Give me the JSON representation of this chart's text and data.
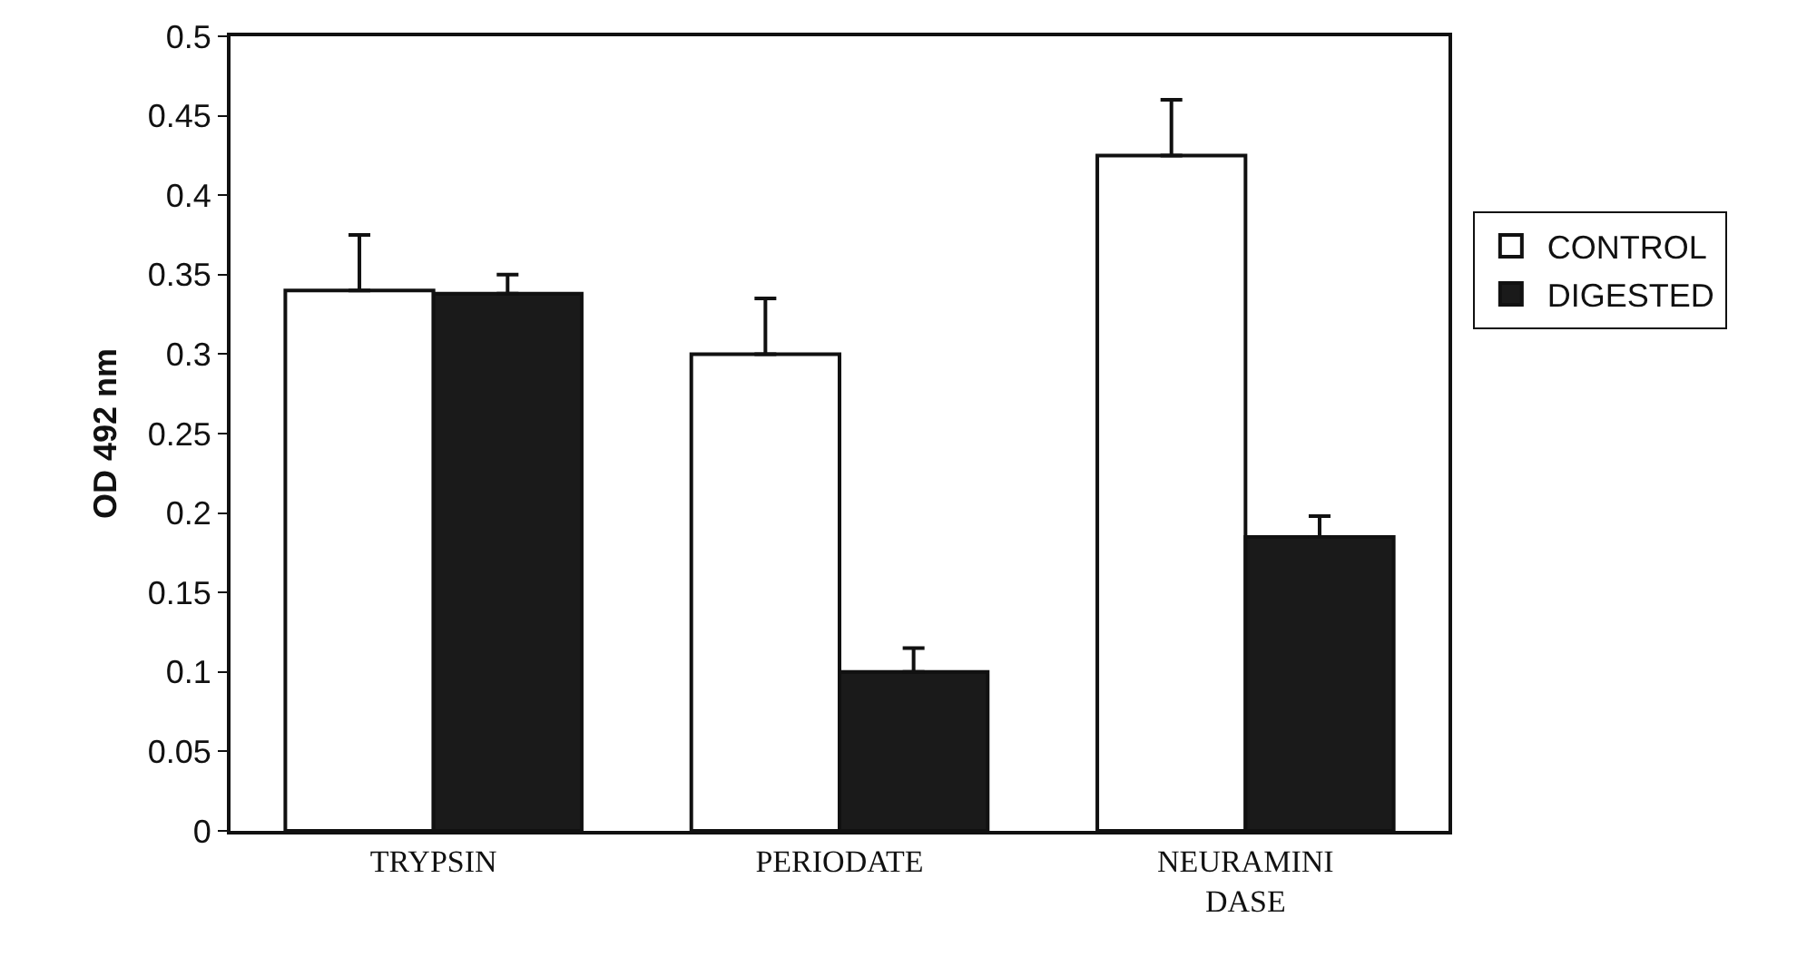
{
  "chart_data": {
    "type": "bar",
    "ylabel": "OD 492 nm",
    "categories": [
      "TRYPSIN",
      "PERIODATE",
      "NEURAMINI\nDASE"
    ],
    "series": [
      {
        "name": "CONTROL",
        "color": "#ffffff",
        "values": [
          0.34,
          0.3,
          0.425
        ],
        "errors": [
          [
            0.34,
            0.375
          ],
          [
            0.3,
            0.335
          ],
          [
            0.425,
            0.46
          ]
        ]
      },
      {
        "name": "DIGESTED",
        "color": "#1a1a1a",
        "values": [
          0.338,
          0.1,
          0.185
        ],
        "errors": [
          [
            0.338,
            0.35
          ],
          [
            0.1,
            0.115
          ],
          [
            0.185,
            0.198
          ]
        ]
      }
    ],
    "ylim": [
      0,
      0.5
    ],
    "yticks": [
      0,
      0.05,
      0.1,
      0.15,
      0.2,
      0.25,
      0.3,
      0.35,
      0.4,
      0.45,
      0.5
    ],
    "grid": false,
    "legend": "right"
  }
}
